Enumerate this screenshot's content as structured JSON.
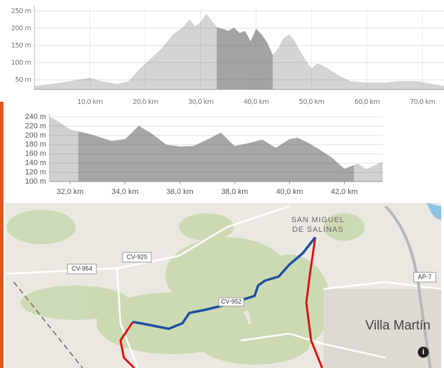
{
  "chart_data": [
    {
      "type": "area",
      "color": "#d4d4d4",
      "highlight_color": "#a3a3a3",
      "x": [
        0,
        5,
        10,
        12,
        15,
        17,
        19,
        21,
        23,
        25,
        27,
        28,
        29,
        30,
        31,
        32,
        33,
        34,
        35,
        36,
        37,
        38,
        39,
        40,
        41,
        42,
        43,
        44,
        45,
        46,
        47,
        48,
        49,
        50,
        51,
        52,
        53,
        55,
        57,
        60,
        63,
        66,
        69,
        73.9
      ],
      "values": [
        32,
        42,
        56,
        46,
        38,
        46,
        82,
        112,
        142,
        182,
        206,
        226,
        206,
        218,
        242,
        222,
        202,
        198,
        192,
        202,
        186,
        192,
        162,
        198,
        182,
        158,
        122,
        142,
        172,
        182,
        162,
        132,
        106,
        82,
        98,
        92,
        82,
        62,
        46,
        42,
        42,
        46,
        46,
        32
      ],
      "highlight": [
        32.9,
        43.0
      ],
      "xlim": [
        0,
        73.9
      ],
      "ylim": [
        22,
        258
      ],
      "xticks": [
        {
          "value": 10,
          "label": "10,0 km"
        },
        {
          "value": 20,
          "label": "20,0 km"
        },
        {
          "value": 30,
          "label": "30,0 km"
        },
        {
          "value": 40,
          "label": "40,0 km"
        },
        {
          "value": 50,
          "label": "50,0 km"
        },
        {
          "value": 60,
          "label": "60,0 km"
        },
        {
          "value": 70,
          "label": "70,0 km"
        }
      ],
      "yticks": [
        {
          "value": 50,
          "label": "50 m"
        },
        {
          "value": 100,
          "label": "100 m"
        },
        {
          "value": 150,
          "label": "150 m"
        },
        {
          "value": 200,
          "label": "200 m"
        },
        {
          "value": 250,
          "label": "250 m"
        }
      ],
      "grid": true
    },
    {
      "type": "area",
      "color": "#d0d0d0",
      "highlight_color": "#a6a6a6",
      "x": [
        31.25,
        31.5,
        32,
        32.5,
        33,
        33.5,
        34,
        34.2,
        34.5,
        35,
        35.5,
        36,
        36.5,
        37,
        37.5,
        37.8,
        38,
        38.5,
        39,
        39.5,
        40,
        40.3,
        40.7,
        41,
        41.5,
        42,
        42.5,
        42.8,
        43.4
      ],
      "values": [
        240,
        233,
        213,
        206,
        198,
        188,
        192,
        203,
        221,
        203,
        180,
        176,
        177,
        191,
        206,
        188,
        177,
        183,
        191,
        173,
        192,
        195,
        183,
        173,
        154,
        128,
        139,
        127,
        143
      ],
      "highlight": [
        32.3,
        42.35
      ],
      "xlim": [
        31.25,
        43.4
      ],
      "ylim": [
        100,
        240
      ],
      "xticks": [
        {
          "value": 32,
          "label": "32,0 km"
        },
        {
          "value": 34,
          "label": "34,0 km"
        },
        {
          "value": 36,
          "label": "36,0 km"
        },
        {
          "value": 38,
          "label": "38,0 km"
        },
        {
          "value": 40,
          "label": "40,0 km"
        },
        {
          "value": 42,
          "label": "42,0 km"
        }
      ],
      "yticks": [
        {
          "value": 100,
          "label": "100 m"
        },
        {
          "value": 120,
          "label": "120 m"
        },
        {
          "value": 140,
          "label": "140 m"
        },
        {
          "value": 160,
          "label": "160 m"
        },
        {
          "value": 180,
          "label": "180 m"
        },
        {
          "value": 200,
          "label": "200 m"
        },
        {
          "value": 220,
          "label": "220 m"
        },
        {
          "value": 240,
          "label": "240 m"
        }
      ],
      "grid": true
    }
  ],
  "map": {
    "labels": [
      "SAN MIGUEL",
      "DE SALINAS",
      "CV-954",
      "CV-925",
      "AP-7",
      "CV-952",
      "Villa Martín"
    ]
  }
}
